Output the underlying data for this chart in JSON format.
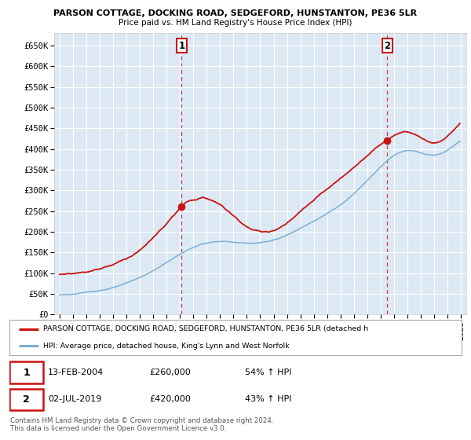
{
  "title1": "PARSON COTTAGE, DOCKING ROAD, SEDGEFORD, HUNSTANTON, PE36 5LR",
  "title2": "Price paid vs. HM Land Registry's House Price Index (HPI)",
  "sale1_date": "13-FEB-2004",
  "sale1_price": 260000,
  "sale1_hpi_text": "54% ↑ HPI",
  "sale2_date": "02-JUL-2019",
  "sale2_price": 420000,
  "sale2_hpi_text": "43% ↑ HPI",
  "legend1": "PARSON COTTAGE, DOCKING ROAD, SEDGEFORD, HUNSTANTON, PE36 5LR (detached h",
  "legend2": "HPI: Average price, detached house, King's Lynn and West Norfolk",
  "footer1": "Contains HM Land Registry data © Crown copyright and database right 2024.",
  "footer2": "This data is licensed under the Open Government Licence v3.0.",
  "hpi_color": "#7bafd4",
  "property_color": "#cc1111",
  "bg_color": "#dce9f5",
  "grid_color": "#ffffff",
  "fig_bg": "#ffffff",
  "ylim_min": 0,
  "ylim_max": 680000,
  "yticks": [
    0,
    50000,
    100000,
    150000,
    200000,
    250000,
    300000,
    350000,
    400000,
    450000,
    500000,
    550000,
    600000,
    650000
  ],
  "ytick_labels": [
    "£0",
    "£50K",
    "£100K",
    "£150K",
    "£200K",
    "£250K",
    "£300K",
    "£350K",
    "£400K",
    "£450K",
    "£500K",
    "£550K",
    "£600K",
    "£650K"
  ],
  "sale1_x": 2004.12,
  "sale2_x": 2019.5,
  "xmin": 1994.6,
  "xmax": 2025.4
}
